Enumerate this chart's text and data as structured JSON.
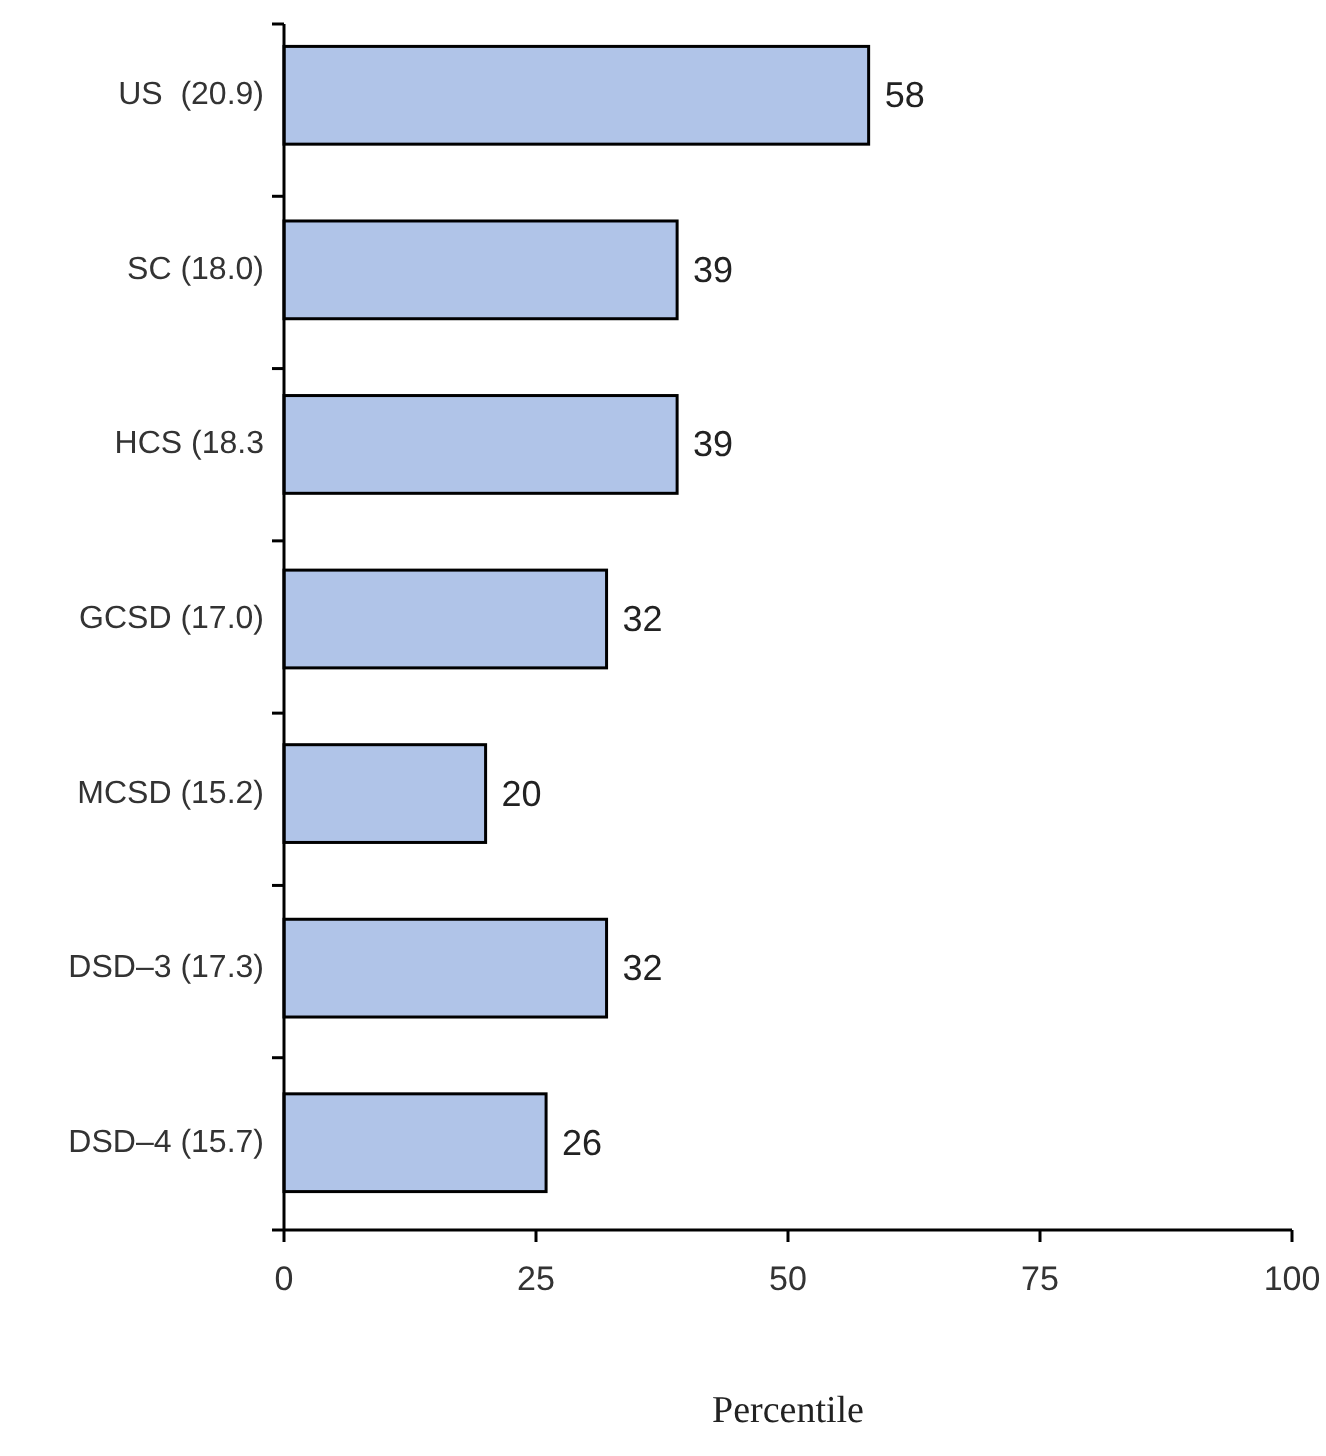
{
  "chart_data": {
    "type": "bar",
    "orientation": "horizontal",
    "xlabel": "Percentile",
    "categories": [
      "US  (20.9)",
      "SC (18.0)",
      "HCS (18.3",
      "GCSD (17.0)",
      "MCSD (15.2)",
      "DSD–3 (17.3)",
      "DSD–4 (15.7)"
    ],
    "values": [
      58,
      39,
      39,
      32,
      20,
      32,
      26
    ],
    "color": "#b0c4e8",
    "xlim": [
      0,
      100
    ],
    "xticks": [
      0,
      25,
      50,
      75,
      100
    ],
    "data_labels": true
  }
}
